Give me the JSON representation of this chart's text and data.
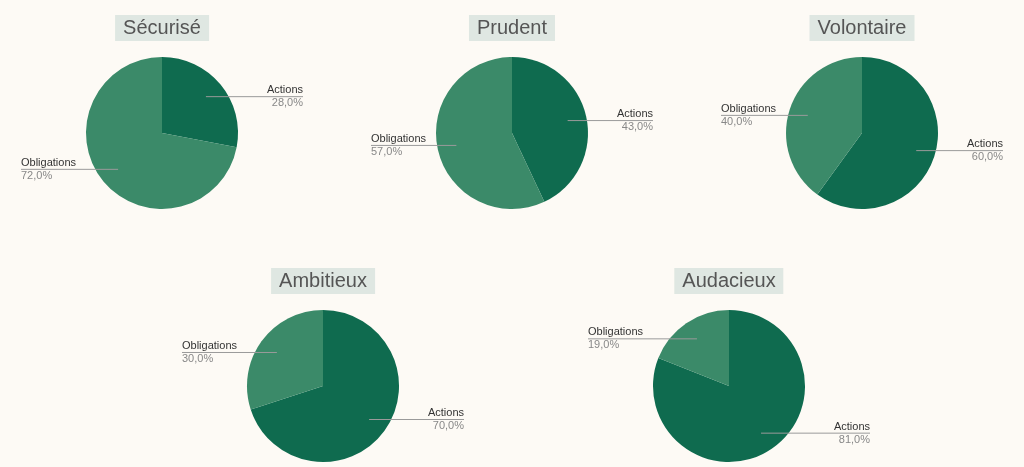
{
  "chart_data": [
    {
      "type": "pie",
      "title": "Sécurisé",
      "categories": [
        "Actions",
        "Obligations"
      ],
      "values": [
        28,
        72
      ],
      "colors": [
        "#0f6b4f",
        "#3b8a69"
      ],
      "value_labels": [
        "28,0%",
        "72,0%"
      ]
    },
    {
      "type": "pie",
      "title": "Prudent",
      "categories": [
        "Actions",
        "Obligations"
      ],
      "values": [
        43,
        57
      ],
      "colors": [
        "#0f6b4f",
        "#3b8a69"
      ],
      "value_labels": [
        "43,0%",
        "57,0%"
      ]
    },
    {
      "type": "pie",
      "title": "Volontaire",
      "categories": [
        "Actions",
        "Obligations"
      ],
      "values": [
        60,
        40
      ],
      "colors": [
        "#0f6b4f",
        "#3b8a69"
      ],
      "value_labels": [
        "60,0%",
        "40,0%"
      ]
    },
    {
      "type": "pie",
      "title": "Ambitieux",
      "categories": [
        "Actions",
        "Obligations"
      ],
      "values": [
        70,
        30
      ],
      "colors": [
        "#0f6b4f",
        "#3b8a69"
      ],
      "value_labels": [
        "70,0%",
        "30,0%"
      ]
    },
    {
      "type": "pie",
      "title": "Audacieux",
      "categories": [
        "Actions",
        "Obligations"
      ],
      "values": [
        81,
        19
      ],
      "colors": [
        "#0f6b4f",
        "#3b8a69"
      ],
      "value_labels": [
        "81,0%",
        "19,0%"
      ]
    }
  ]
}
